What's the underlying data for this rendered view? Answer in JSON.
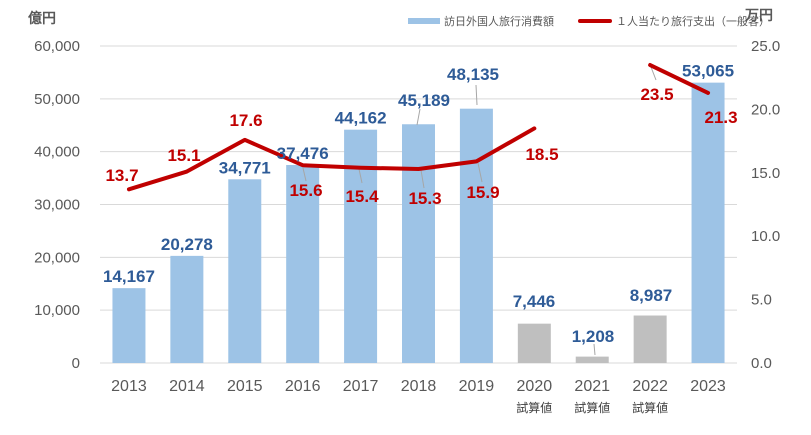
{
  "chart_data": {
    "type": "bar+line",
    "categories": [
      "2013",
      "2014",
      "2015",
      "2016",
      "2017",
      "2018",
      "2019",
      "2020",
      "2021",
      "2022",
      "2023"
    ],
    "category_notes": [
      null,
      null,
      null,
      null,
      null,
      null,
      null,
      "試算値",
      "試算値",
      "試算値",
      null
    ],
    "series": [
      {
        "name": "訪日外国人旅行消費額",
        "type": "bar",
        "axis": "left",
        "unit": "億円",
        "values": [
          14167,
          20278,
          34771,
          37476,
          44162,
          45189,
          48135,
          7446,
          1208,
          8987,
          53065
        ],
        "labels": [
          "14,167",
          "20,278",
          "34,771",
          "37,476",
          "44,162",
          "45,189",
          "48,135",
          "7,446",
          "1,208",
          "8,987",
          "53,065"
        ],
        "estimated": [
          false,
          false,
          false,
          false,
          false,
          false,
          false,
          true,
          true,
          true,
          false
        ],
        "color": "#9DC3E6",
        "estimated_color": "#BFBFBF",
        "label_color": "#2E5B97"
      },
      {
        "name": "１人当たり旅行支出（一般客）",
        "type": "line",
        "axis": "right",
        "unit": "万円",
        "values": [
          13.7,
          15.1,
          17.6,
          15.6,
          15.4,
          15.3,
          15.9,
          18.5,
          null,
          23.5,
          21.3
        ],
        "labels": [
          "13.7",
          "15.1",
          "17.6",
          "15.6",
          "15.4",
          "15.3",
          "15.9",
          "18.5",
          null,
          "23.5",
          "21.3"
        ],
        "color": "#C00000",
        "label_color": "#C00000"
      }
    ],
    "left_axis": {
      "title": "億円",
      "min": 0,
      "max": 60000,
      "step": 10000,
      "tick_labels": [
        "0",
        "10,000",
        "20,000",
        "30,000",
        "40,000",
        "50,000",
        "60,000"
      ]
    },
    "right_axis": {
      "title": "万円",
      "min": 0,
      "max": 25,
      "step": 5,
      "tick_labels": [
        "0.0",
        "5.0",
        "10.0",
        "15.0",
        "20.0",
        "25.0"
      ]
    },
    "grid": true,
    "legend_position": "top"
  },
  "colors": {
    "grid": "#D9D9D9",
    "axis_text": "#595959",
    "note_text": "#404040",
    "leader": "#A6A6A6",
    "background": "#FFFFFF"
  }
}
